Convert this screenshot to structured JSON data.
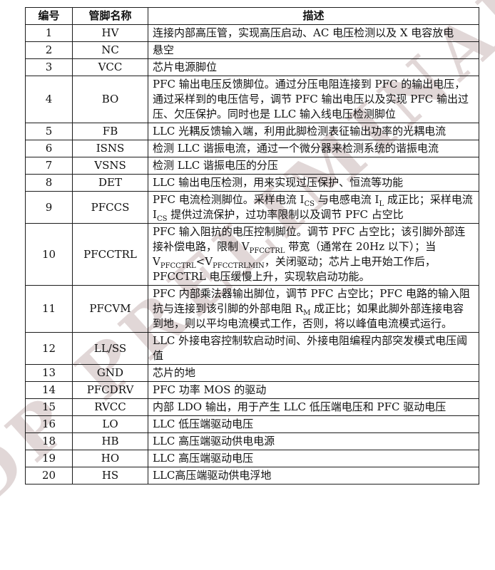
{
  "watermark": {
    "text": "NDP PRELIMINARY",
    "color": "#c9b8b8"
  },
  "table": {
    "headers": [
      "编号",
      "管脚名称",
      "描述"
    ],
    "rows": [
      {
        "num": "1",
        "pin": "HV",
        "desc": "连接内部高压管，实现高压启动、AC 电压检测以及 X 电容放电"
      },
      {
        "num": "2",
        "pin": "NC",
        "desc": "悬空"
      },
      {
        "num": "3",
        "pin": "VCC",
        "desc": "芯片电源脚位"
      },
      {
        "num": "4",
        "pin": "BO",
        "desc": "PFC 输出电压反馈脚位。通过分压电阻连接到 PFC 的输出电压，通过采样到的电压信号，调节 PFC 输出电压以及实现 PFC 输出过压、欠压保护。同时也是 LLC 输入线电压检测脚位"
      },
      {
        "num": "5",
        "pin": "FB",
        "desc": "LLC 光耦反馈输入端，利用此脚检测表征输出功率的光耦电流"
      },
      {
        "num": "6",
        "pin": "ISNS",
        "desc": "检测 LLC 谐振电流，通过一个微分器来检测系统的谐振电流"
      },
      {
        "num": "7",
        "pin": "VSNS",
        "desc": "检测 LLC 谐振电压的分压"
      },
      {
        "num": "8",
        "pin": "DET",
        "desc": "LLC 输出电压检测，用来实现过压保护、恒流等功能"
      },
      {
        "num": "9",
        "pin": "PFCCS",
        "desc": "PFC 电流检测脚位。采样电流 I~CS~ 与电感电流 I~L~ 成正比；采样电流 I~CS~ 提供过流保护，过功率限制以及调节 PFC 占空比"
      },
      {
        "num": "10",
        "pin": "PFCCTRL",
        "desc": "PFC 输入阻抗的电压控制脚位。调节 PFC 占空比；该引脚外部连接补偿电路，限制 V~PFCCTRL~ 带宽（通常在 20Hz 以下）；当 V~PFCCTRL~<V~PFCCTRLMIN~，关闭驱动；芯片上电开始工作后，PFCCTRL 电压缓慢上升，实现软启动功能。"
      },
      {
        "num": "11",
        "pin": "PFCVM",
        "desc": "PFC 内部乘法器输出脚位，调节 PFC 占空比；PFC 电路的输入阻抗与连接到该引脚的外部电阻 R~M~ 成正比；如果此脚外部连接电容到地，则以平均电流模式工作，否则，将以峰值电流模式运行。"
      },
      {
        "num": "12",
        "pin": "LL/SS",
        "desc": "LLC 外接电容控制软启动时间、外接电阻编程内部突发模式电压阈值"
      },
      {
        "num": "13",
        "pin": "GND",
        "desc": "芯片的地"
      },
      {
        "num": "14",
        "pin": "PFCDRV",
        "desc": "PFC 功率 MOS 的驱动"
      },
      {
        "num": "15",
        "pin": "RVCC",
        "desc": "内部 LDO 输出，用于产生 LLC 低压端电压和 PFC 驱动电压"
      },
      {
        "num": "16",
        "pin": "LO",
        "desc": "LLC 低压端驱动电压"
      },
      {
        "num": "18",
        "pin": "HB",
        "desc": "LLC 高压端驱动供电电源"
      },
      {
        "num": "19",
        "pin": "HO",
        "desc": "LLC 高压端驱动电压"
      },
      {
        "num": "20",
        "pin": "HS",
        "desc": "LLC高压端驱动供电浮地"
      }
    ]
  }
}
